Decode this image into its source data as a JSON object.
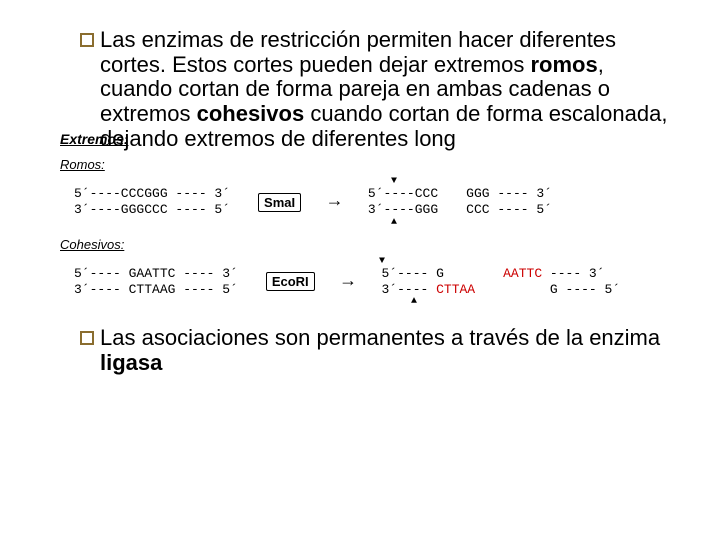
{
  "bullet1_prefix": "Las",
  "bullet1_rest": " enzimas de restricción permiten hacer diferentes cortes. Estos cortes pueden dejar extremos ",
  "bullet1_bold1": "romos",
  "bullet1_mid": ", cuando cortan de forma pareja en ambas cadenas o extremos ",
  "bullet1_bold2": "cohesivos",
  "bullet1_end": " cuando cortan de forma escalonada, dejando extremos de diferentes long",
  "diagram_title": "Extremos:",
  "romos_label": "Romos:",
  "romos_left_1": "5´----CCCGGG ---- 3´",
  "romos_left_2": "3´----GGGCCC ---- 5´",
  "romos_enzyme": "SmaI",
  "romos_r1_1": "5´----CCC",
  "romos_r1_2": "3´----GGG",
  "romos_r2_1": "GGG ---- 3´",
  "romos_r2_2": "CCC ---- 5´",
  "cohesivos_label": "Cohesivos:",
  "coh_left_1": "5´---- GAATTC ---- 3´",
  "coh_left_2": "3´---- CTTAAG ---- 5´",
  "coh_enzyme": "EcoRI",
  "coh_r1_1": "5´---- G",
  "coh_r1_2": "3´---- CTTAA",
  "coh_r2_1a": "AATTC",
  "coh_r2_1b": " ---- 3´",
  "coh_r2_2": "      G ---- 5´",
  "bullet2_prefix": "Las",
  "bullet2_rest": " asociaciones son permanentes a través de la enzima ",
  "bullet2_bold": "ligasa"
}
